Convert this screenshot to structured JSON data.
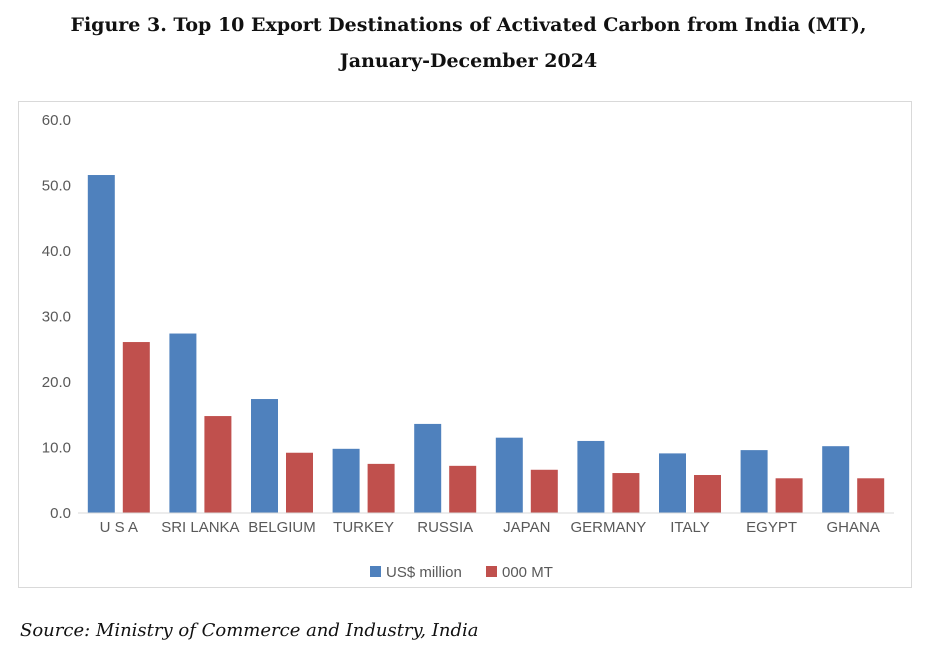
{
  "title_line1": "Figure 3. Top 10 Export Destinations of Activated Carbon from India (MT),",
  "title_line2": "January-December 2024",
  "source": "Source: Ministry of Commerce and Industry, India",
  "chart_data": {
    "type": "bar",
    "categories": [
      "U S A",
      "SRI LANKA",
      "BELGIUM",
      "TURKEY",
      "RUSSIA",
      "JAPAN",
      "GERMANY",
      "ITALY",
      "EGYPT",
      "GHANA"
    ],
    "series": [
      {
        "name": "US$ million",
        "color": "#4f81bd",
        "values": [
          51.6,
          27.4,
          17.4,
          9.8,
          13.6,
          11.5,
          11.0,
          9.1,
          9.6,
          10.2
        ]
      },
      {
        "name": "000 MT",
        "color": "#c0504d",
        "values": [
          26.1,
          14.8,
          9.2,
          7.5,
          7.2,
          6.6,
          6.1,
          5.8,
          5.3,
          5.3
        ]
      }
    ],
    "yticks": [
      "0.0",
      "10.0",
      "20.0",
      "30.0",
      "40.0",
      "50.0",
      "60.0"
    ],
    "ylim": [
      0,
      60
    ],
    "xlabel": "",
    "ylabel": "",
    "legend": "bottom",
    "grid": false
  }
}
